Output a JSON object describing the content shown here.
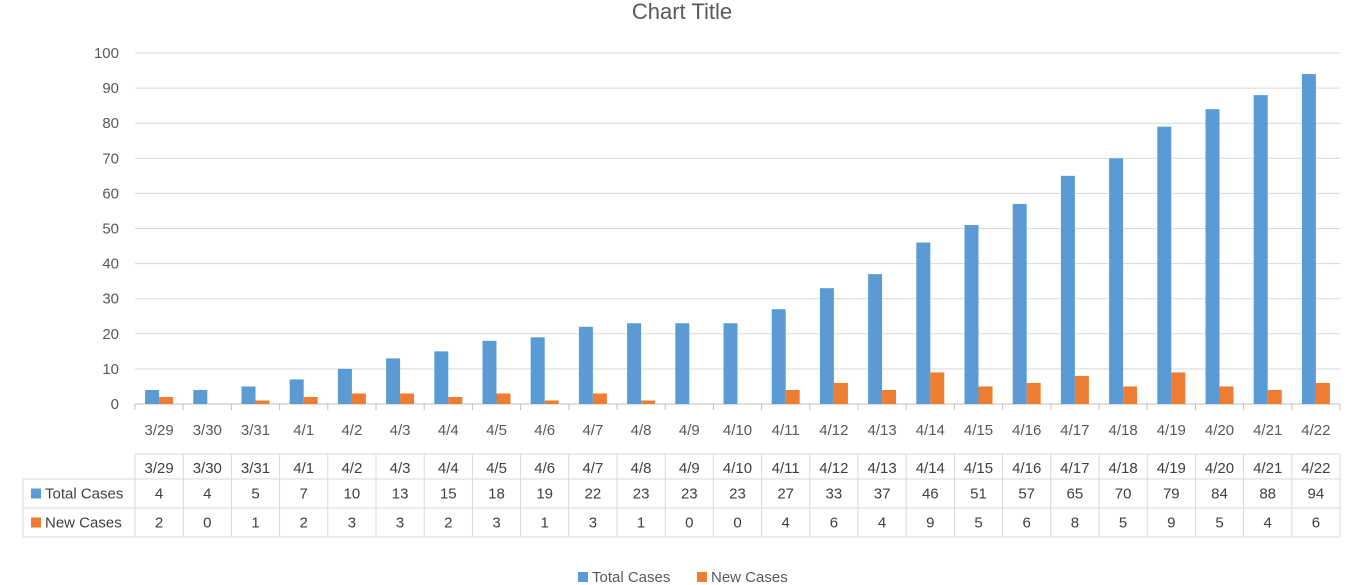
{
  "chart_data": {
    "type": "bar",
    "title": "Chart Title",
    "xlabel": "",
    "ylabel": "",
    "ylim": [
      0,
      100
    ],
    "yticks": [
      0,
      10,
      20,
      30,
      40,
      50,
      60,
      70,
      80,
      90,
      100
    ],
    "grid": true,
    "legend_position": "bottom",
    "categories": [
      "3/29",
      "3/30",
      "3/31",
      "4/1",
      "4/2",
      "4/3",
      "4/4",
      "4/5",
      "4/6",
      "4/7",
      "4/8",
      "4/9",
      "4/10",
      "4/11",
      "4/12",
      "4/13",
      "4/14",
      "4/15",
      "4/16",
      "4/17",
      "4/18",
      "4/19",
      "4/20",
      "4/21",
      "4/22"
    ],
    "series": [
      {
        "name": "Total Cases",
        "color": "#5B9BD5",
        "values": [
          4,
          4,
          5,
          7,
          10,
          13,
          15,
          18,
          19,
          22,
          23,
          23,
          23,
          27,
          33,
          37,
          46,
          51,
          57,
          65,
          70,
          79,
          84,
          88,
          94
        ]
      },
      {
        "name": "New Cases",
        "color": "#ED7D31",
        "values": [
          2,
          0,
          1,
          2,
          3,
          3,
          2,
          3,
          1,
          3,
          1,
          0,
          0,
          4,
          6,
          4,
          9,
          5,
          6,
          8,
          5,
          9,
          5,
          4,
          6
        ]
      }
    ],
    "data_table": true
  }
}
